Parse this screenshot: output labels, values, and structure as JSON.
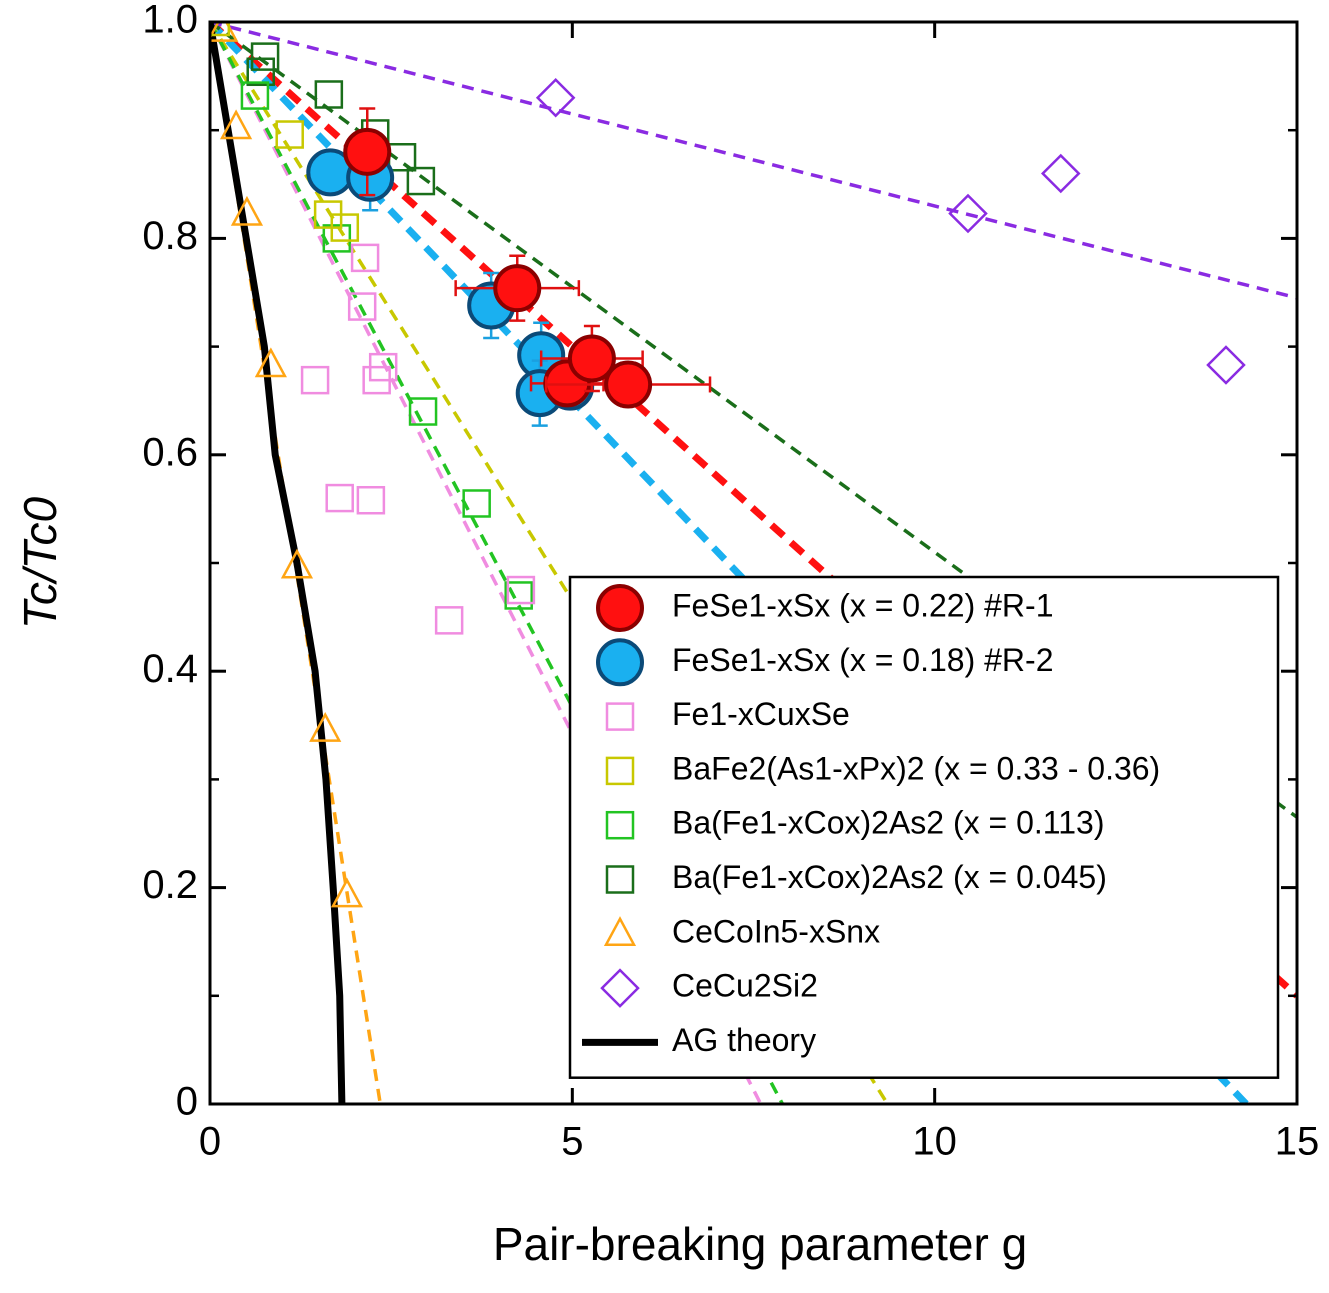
{
  "chart_data": {
    "type": "scatter",
    "xlabel": "Pair-breaking parameter g",
    "ylabel": "Tc/Tc0",
    "xlim": [
      0,
      15
    ],
    "ylim": [
      0,
      1
    ],
    "xticks": [
      0,
      5,
      10,
      15
    ],
    "yticks": [
      0,
      0.2,
      0.4,
      0.6,
      0.8,
      {
        "value": 1,
        "label": "1.0"
      }
    ],
    "yminorticks": [
      0.1,
      0.3,
      0.5,
      0.7,
      0.9
    ],
    "legend": "lower-right",
    "series": [
      {
        "name": "FeSe1-xSx (x = 0.22) #R-1",
        "color": "#ff1010",
        "marker": "circle",
        "x": [
          2.17,
          4.24,
          4.93,
          5.27,
          5.77
        ],
        "y": [
          0.88,
          0.754,
          0.666,
          0.689,
          0.665
        ],
        "xerr": [
          0.3,
          0.85,
          0.5,
          0.7,
          1.13
        ],
        "yerr": [
          0.04,
          0.03,
          0.02,
          0.03,
          0.02
        ],
        "fit": {
          "x": [
            0,
            15
          ],
          "y": [
            1,
            0.1
          ]
        }
      },
      {
        "name": "FeSe1-xSx (x = 0.18) #R-2",
        "color": "#1ab0f0",
        "marker": "circle",
        "x": [
          1.66,
          2.21,
          3.88,
          4.57,
          4.55,
          4.97
        ],
        "y": [
          0.861,
          0.856,
          0.738,
          0.692,
          0.657,
          0.663
        ],
        "xerr": [
          0.1,
          0.3,
          0.3,
          0.2,
          0.2,
          0.2
        ],
        "yerr": [
          0.02,
          0.03,
          0.03,
          0.03,
          0.03,
          0.02
        ],
        "fit": {
          "x": [
            0,
            14.3
          ],
          "y": [
            1,
            0
          ]
        }
      },
      {
        "name": "Fe1-xCuxSe",
        "color": "#f08ce0",
        "marker": "square",
        "x": [
          2.14,
          2.1,
          2.39,
          2.3,
          1.45,
          1.79,
          2.22,
          3.3,
          4.29
        ],
        "y": [
          0.782,
          0.737,
          0.681,
          0.669,
          0.669,
          0.56,
          0.558,
          0.447,
          0.475
        ],
        "fit": {
          "x": [
            0,
            7.6
          ],
          "y": [
            1,
            0
          ]
        }
      },
      {
        "name": "BaFe2(As1-xPx)2 (x = 0.33 - 0.36)",
        "color": "#c8c800",
        "marker": "square",
        "x": [
          0.08,
          1.1,
          1.63,
          1.86
        ],
        "y": [
          1,
          0.896,
          0.822,
          0.81
        ],
        "fit": {
          "x": [
            0,
            9.35
          ],
          "y": [
            1,
            0
          ]
        }
      },
      {
        "name": "Ba(Fe1-xCox)2As2 (x = 0.113)",
        "color": "#22c422",
        "marker": "square",
        "x": [
          0.62,
          1.75,
          2.94,
          3.68,
          4.26
        ],
        "y": [
          0.932,
          0.8,
          0.64,
          0.555,
          0.47
        ],
        "fit": {
          "x": [
            0,
            7.9
          ],
          "y": [
            1,
            0
          ]
        }
      },
      {
        "name": "Ba(Fe1-xCox)2As2 (x = 0.045)",
        "color": "#1a6e1a",
        "marker": "square",
        "x": [
          0.76,
          0.7,
          1.64,
          2.28,
          2.65,
          2.91
        ],
        "y": [
          0.968,
          0.954,
          0.933,
          0.897,
          0.875,
          0.853
        ],
        "fit": {
          "x": [
            0,
            15
          ],
          "y": [
            1,
            0.265
          ]
        }
      },
      {
        "name": "CeCoIn5-xSnx",
        "color": "#ffa514",
        "marker": "triangle",
        "x": [
          0.17,
          0.36,
          0.51,
          0.84,
          1.2,
          1.59,
          1.89
        ],
        "y": [
          0.993,
          0.903,
          0.823,
          0.683,
          0.497,
          0.346,
          0.193
        ],
        "fit": {
          "x": [
            0,
            2.35
          ],
          "y": [
            1,
            0
          ]
        }
      },
      {
        "name": "CeCu2Si2",
        "color": "#8a2be2",
        "marker": "diamond",
        "x": [
          4.77,
          10.46,
          11.74,
          14.02
        ],
        "y": [
          0.93,
          0.823,
          0.86,
          0.683
        ],
        "fit": {
          "x": [
            0,
            15
          ],
          "y": [
            1,
            0.745
          ]
        }
      },
      {
        "name": "AG theory",
        "color": "#000000",
        "marker": "line",
        "x": [
          0,
          0.25,
          0.5,
          0.75,
          0.9,
          1.2,
          1.45,
          1.6,
          1.7,
          1.79,
          1.82
        ],
        "y": [
          1,
          0.9,
          0.8,
          0.7,
          0.6,
          0.5,
          0.4,
          0.3,
          0.2,
          0.1,
          0
        ]
      }
    ]
  }
}
